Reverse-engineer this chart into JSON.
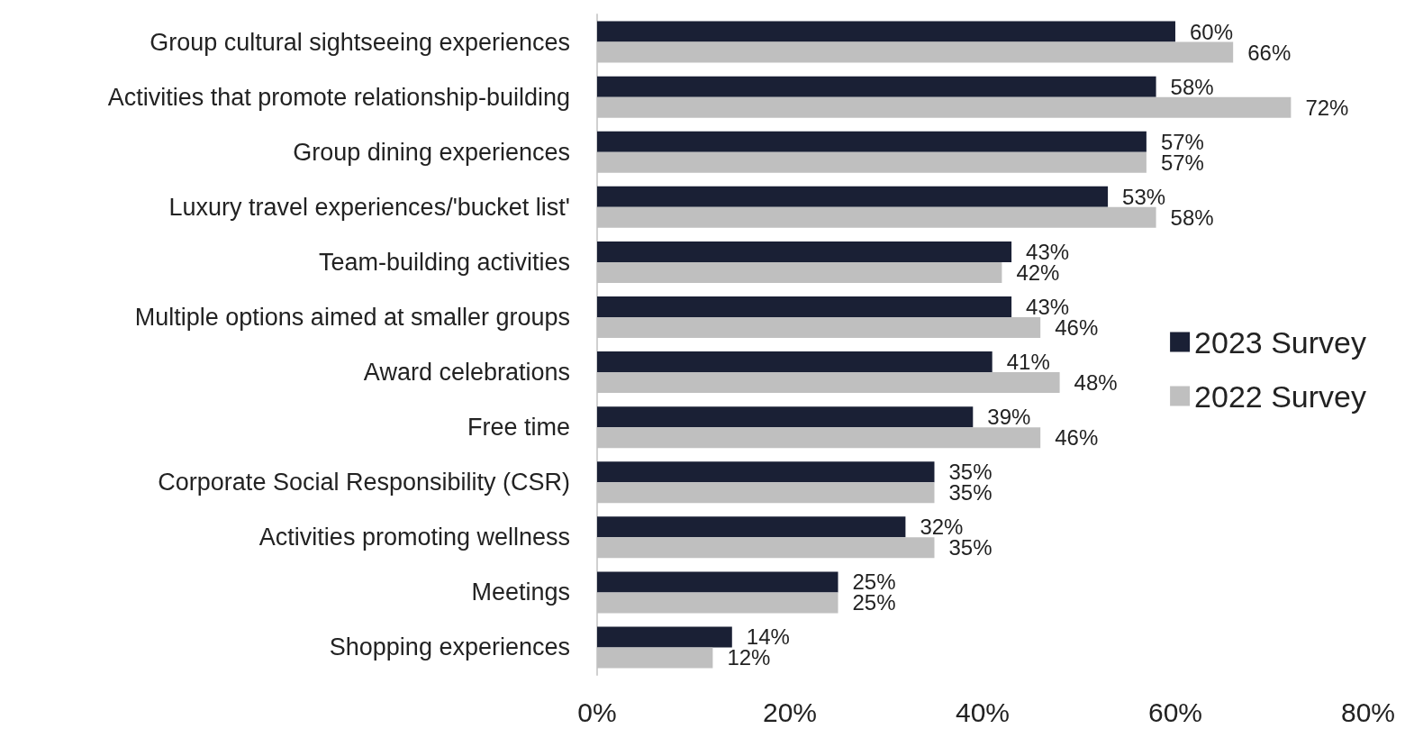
{
  "chart_data": {
    "type": "bar",
    "orientation": "horizontal",
    "categories": [
      "Group cultural sightseeing experiences",
      "Activities that promote relationship-building",
      "Group dining experiences",
      "Luxury travel experiences/'bucket list'",
      "Team-building activities",
      "Multiple options aimed at smaller groups",
      "Award celebrations",
      "Free time",
      "Corporate Social Responsibility (CSR)",
      "Activities promoting wellness",
      "Meetings",
      "Shopping experiences"
    ],
    "series": [
      {
        "name": "2023 Survey",
        "color": "#1a2035",
        "values": [
          60,
          58,
          57,
          53,
          43,
          43,
          41,
          39,
          35,
          32,
          25,
          14
        ],
        "value_labels": [
          "60%",
          "58%",
          "57%",
          "53%",
          "43%",
          "43%",
          "41%",
          "39%",
          "35%",
          "32%",
          "25%",
          "14%"
        ]
      },
      {
        "name": "2022 Survey",
        "color": "#bfbfbf",
        "values": [
          66,
          72,
          57,
          58,
          42,
          46,
          48,
          46,
          35,
          35,
          25,
          12
        ],
        "value_labels": [
          "66%",
          "72%",
          "57%",
          "58%",
          "42%",
          "46%",
          "48%",
          "46%",
          "35%",
          "35%",
          "25%",
          "12%"
        ]
      }
    ],
    "xlim": [
      0,
      80
    ],
    "xticks": [
      {
        "value": 0,
        "label": "0%"
      },
      {
        "value": 20,
        "label": "20%"
      },
      {
        "value": 40,
        "label": "40%"
      },
      {
        "value": 60,
        "label": "60%"
      },
      {
        "value": 80,
        "label": "80%"
      }
    ],
    "grid": false,
    "legend": "right"
  }
}
